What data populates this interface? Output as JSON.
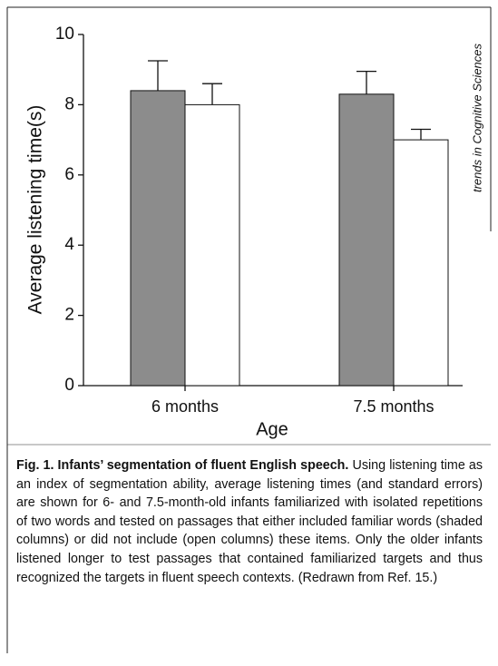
{
  "chart_data": {
    "type": "bar",
    "ylabel": "Average listening time(s)",
    "xlabel": "Age",
    "side_note": "trends in Cognitive Sciences",
    "categories": [
      "6 months",
      "7.5 months"
    ],
    "series": [
      {
        "color": "#8c8c8c",
        "values": [
          8.4,
          8.3
        ],
        "errors": [
          0.85,
          0.65
        ]
      },
      {
        "color": "#ffffff",
        "values": [
          8.0,
          7.0
        ],
        "errors": [
          0.6,
          0.3
        ]
      }
    ],
    "ylim": [
      0,
      10
    ],
    "yticks": [
      0,
      2,
      4,
      6,
      8,
      10
    ],
    "caption_title": "Fig. 1. Infants’ segmentation of fluent English speech.",
    "caption": "Using listening time as an index of segmentation ability, average listening times (and standard errors) are shown for 6- and 7.5-month-old infants familiarized with isolated repetitions of two words and tested on passages that either included familiar words (shaded columns) or did not include (open columns) these items. Only the older infants listened longer to test passages that contained familiarized targets and thus recognized the targets in fluent speech contexts. (Redrawn from Ref. 15.)"
  }
}
